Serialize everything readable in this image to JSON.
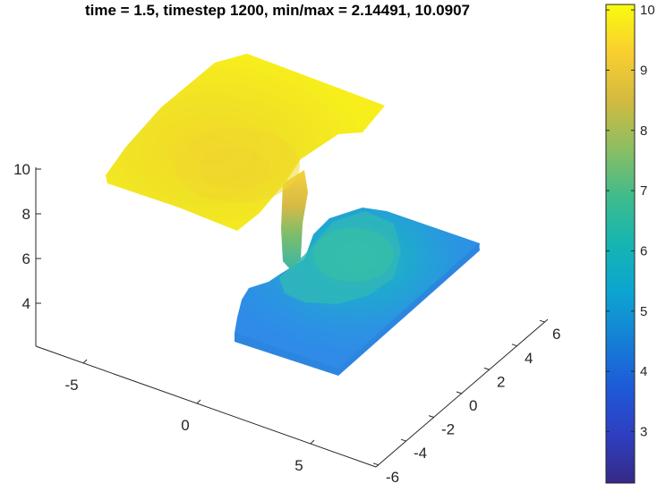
{
  "chart_data": {
    "type": "surface-3d",
    "title": "time = 1.5, timestep 1200, min/max = 2.14491, 10.0907",
    "z_axis": {
      "ticks": [
        4,
        6,
        8,
        10
      ],
      "tick_labels": [
        "4",
        "6",
        "8",
        "10"
      ]
    },
    "x_axis": {
      "ticks": [
        -5,
        0,
        5
      ],
      "tick_labels": [
        "-5",
        "0",
        "5"
      ]
    },
    "y_axis": {
      "ticks": [
        -6,
        -4,
        -2,
        0,
        2,
        4,
        6
      ],
      "tick_labels": [
        "-6",
        "-4",
        "-2",
        "0",
        "2",
        "4",
        "6"
      ]
    },
    "colorbar": {
      "min": 2.14491,
      "max": 10.0907,
      "colormap": "parula",
      "ticks": [
        3,
        4,
        5,
        6,
        7,
        8,
        9,
        10
      ],
      "tick_labels": [
        "3",
        "4",
        "5",
        "6",
        "7",
        "8",
        "9",
        "10"
      ]
    },
    "surfaces": [
      {
        "name": "",
        "approx_value": 10,
        "color": "#f2e421"
      },
      {
        "name": "",
        "approx_value": 5,
        "color": "#2a93e6"
      }
    ],
    "grid": false
  }
}
